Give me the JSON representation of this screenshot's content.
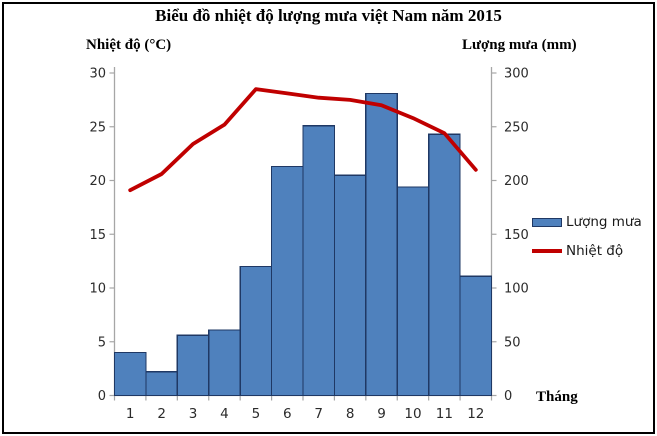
{
  "chart_data": {
    "type": "combo-bar-line",
    "title": "Biểu đồ nhiệt độ lượng mưa việt Nam năm 2015",
    "categories": [
      "1",
      "2",
      "3",
      "4",
      "5",
      "6",
      "7",
      "8",
      "9",
      "10",
      "11",
      "12"
    ],
    "x_axis_label": "Tháng",
    "left_axis": {
      "label": "Nhiệt độ (°C)",
      "min": 0,
      "max": 30,
      "step": 5,
      "ticks": [
        "0",
        "5",
        "10",
        "15",
        "20",
        "25",
        "30"
      ]
    },
    "right_axis": {
      "label": "Lượng mưa (mm)",
      "min": 0,
      "max": 300,
      "step": 50,
      "ticks": [
        "0",
        "50",
        "100",
        "150",
        "200",
        "250",
        "300"
      ]
    },
    "grid": false,
    "legend_position": "right",
    "series": [
      {
        "name": "Lượng mưa",
        "type": "bar",
        "axis": "right",
        "fill_color": "#4f81bd",
        "border_color": "#1f3864",
        "values": [
          40,
          22,
          56,
          61,
          120,
          213,
          251,
          205,
          281,
          194,
          243,
          111
        ]
      },
      {
        "name": "Nhiệt độ",
        "type": "line",
        "axis": "left",
        "color": "#c00000",
        "values": [
          19.1,
          20.6,
          23.4,
          25.2,
          28.5,
          28.1,
          27.7,
          27.5,
          27.0,
          25.8,
          24.4,
          21.0
        ]
      }
    ],
    "colors": {
      "axis": "#a6a6a6",
      "tick_text": "#2b2b2b",
      "frame_border": "#000000",
      "background": "#ffffff"
    }
  },
  "legend": {
    "rainfall_label": "Lượng mưa",
    "temperature_label": "Nhiệt độ"
  }
}
